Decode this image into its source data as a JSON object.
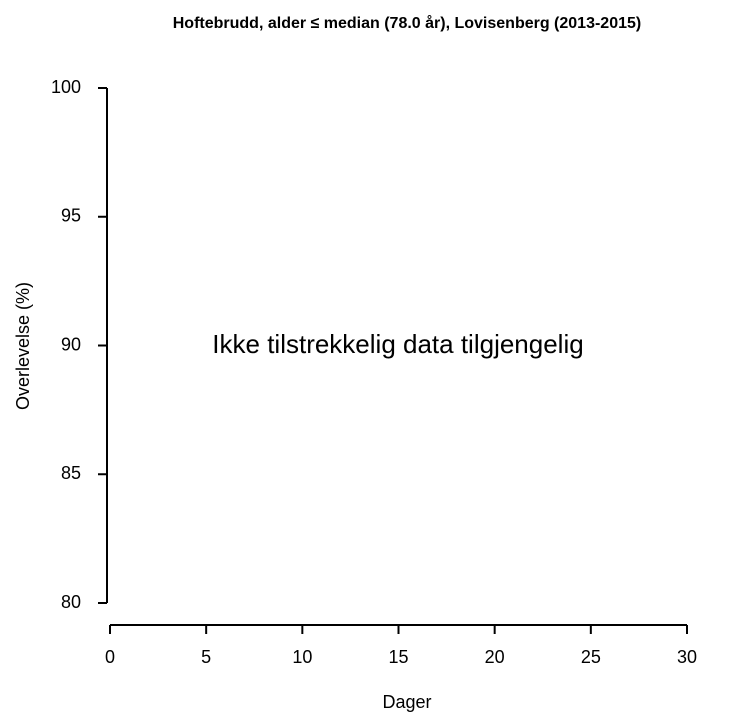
{
  "chart_data": {
    "type": "line",
    "title": "Hoftebrudd, alder ≤ median (78.0 år), Lovisenberg (2013-2015)",
    "xlabel": "Dager",
    "ylabel": "Overlevelse (%)",
    "annotation": "Ikke tilstrekkelig data tilgjengelig",
    "xlim": [
      0,
      30
    ],
    "xticks": [
      0,
      5,
      10,
      15,
      20,
      25,
      30
    ],
    "ylim": [
      80,
      100
    ],
    "yticks": [
      80,
      85,
      90,
      95,
      100
    ],
    "series": []
  }
}
